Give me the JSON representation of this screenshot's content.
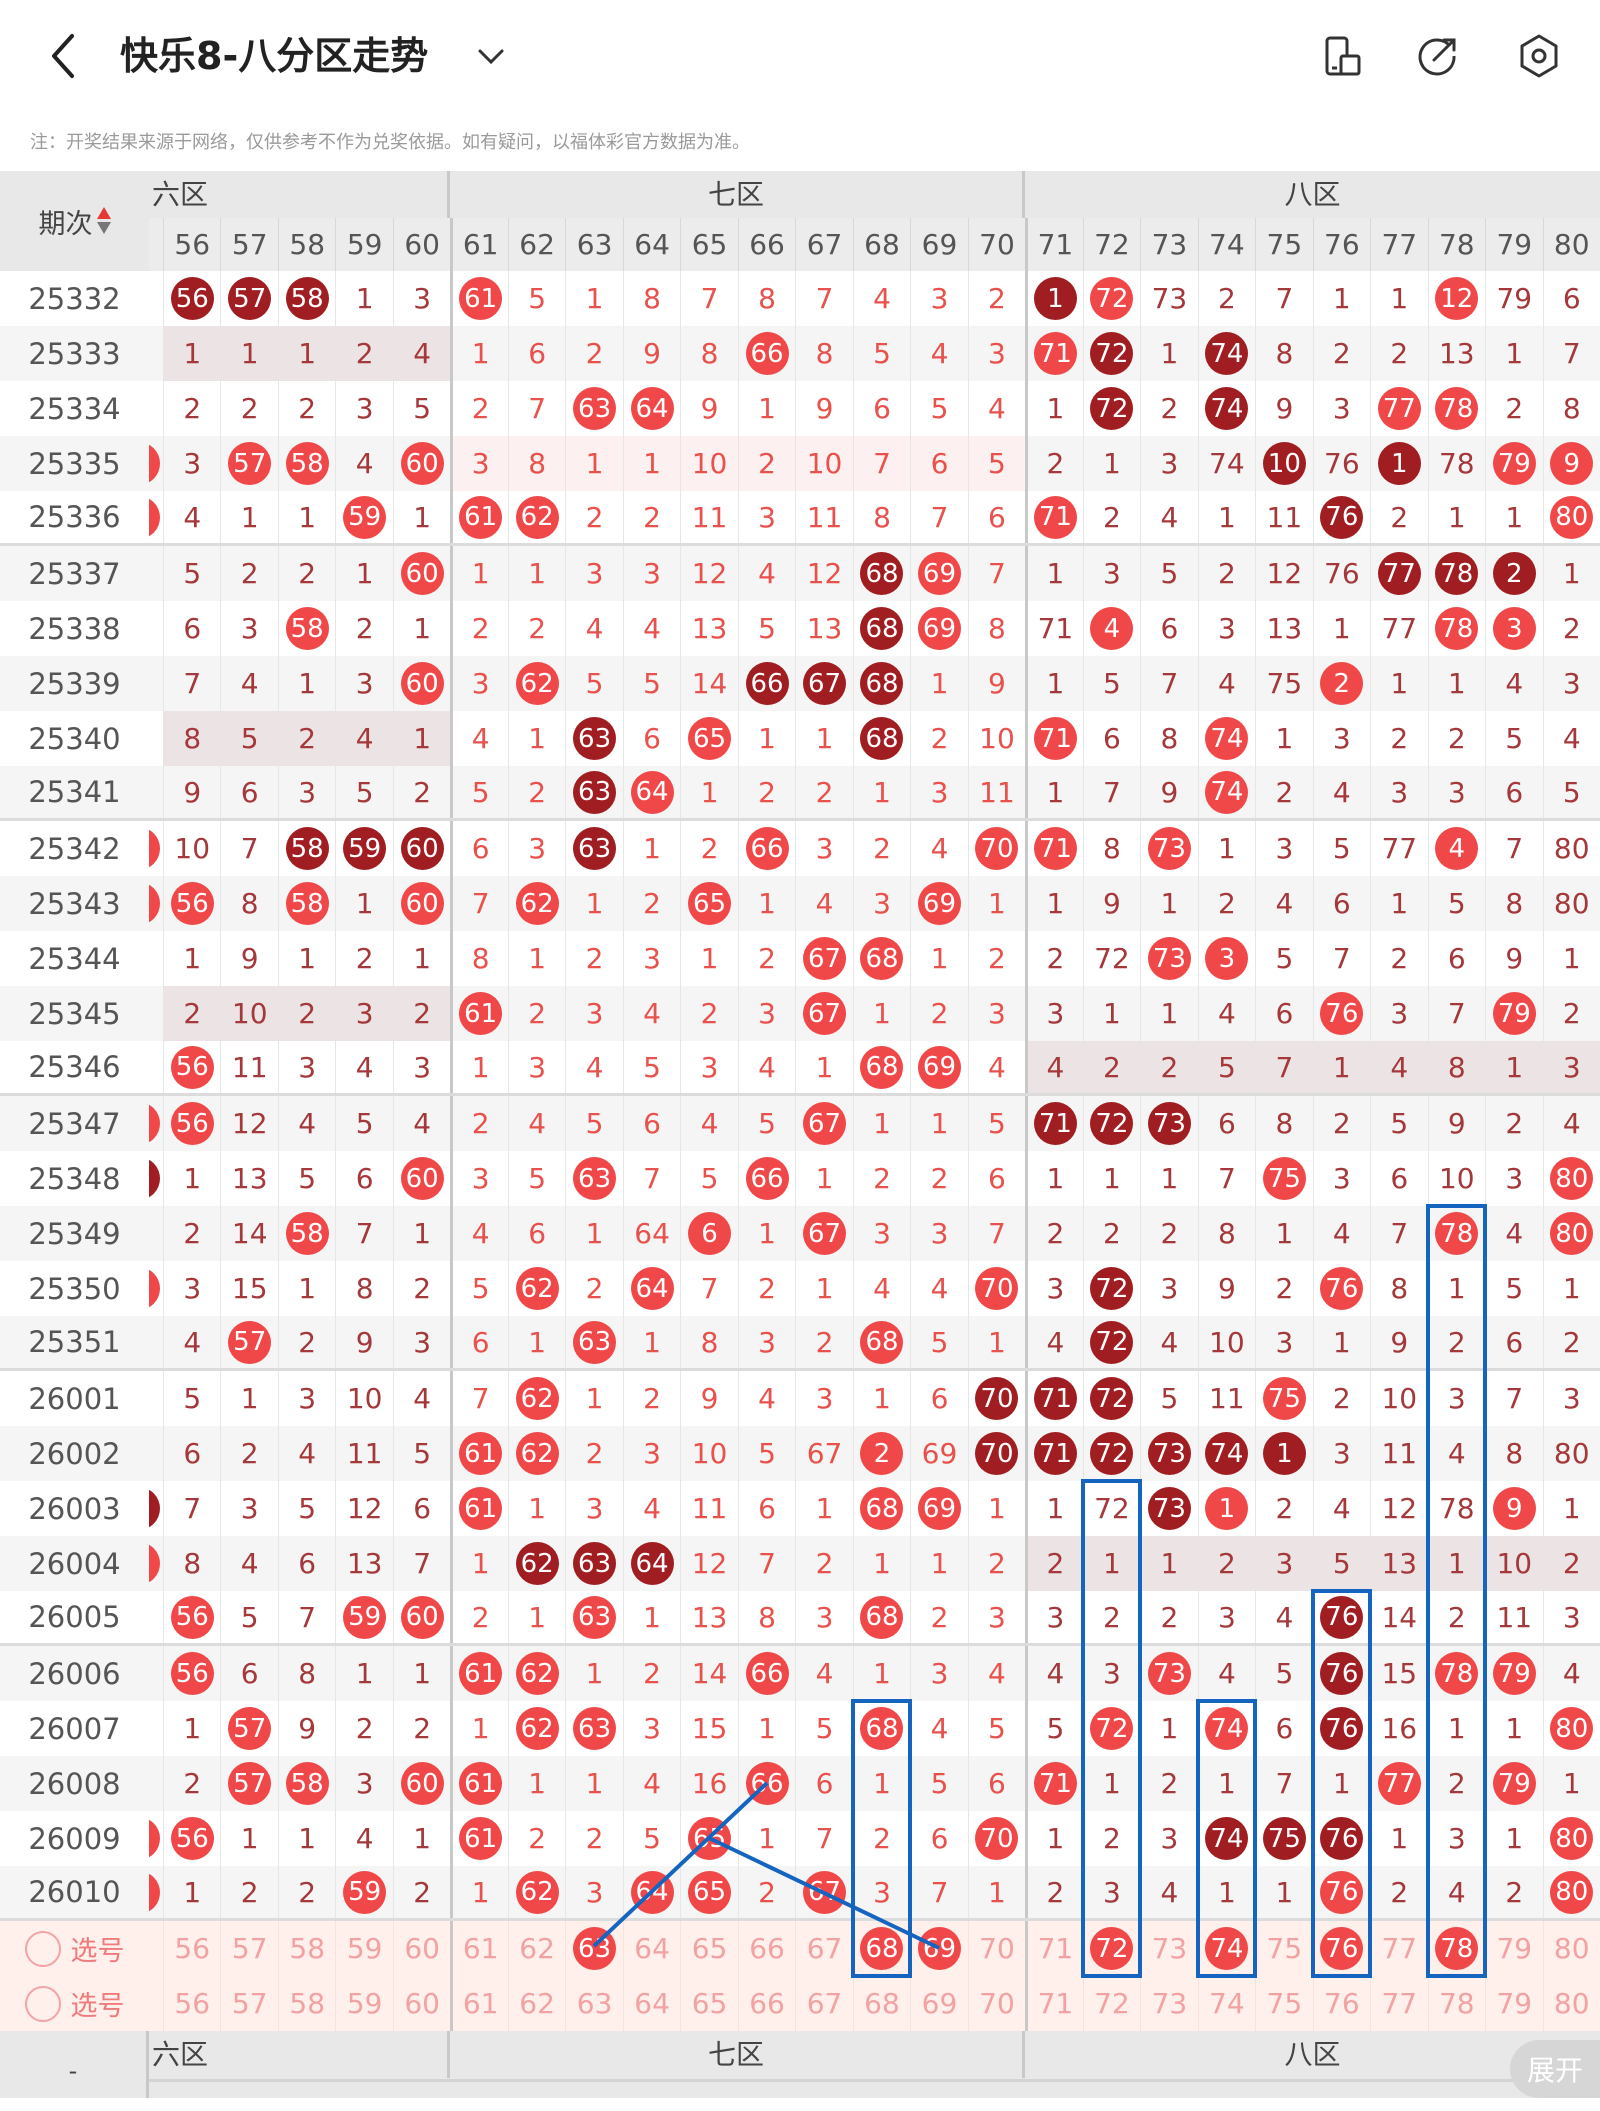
{
  "header": {
    "title": "快乐8-八分区走势",
    "note": "注：开奖结果来源于网络，仅供参考不作为兑奖依据。如有疑问，以福体彩官方数据为准。",
    "icons": [
      "back-icon",
      "chevron-down-icon",
      "rotate-screen-icon",
      "share-icon",
      "settings-icon"
    ]
  },
  "table": {
    "period_header": "期次",
    "zones": [
      "六区",
      "七区",
      "八区"
    ],
    "columns": [
      "56",
      "57",
      "58",
      "59",
      "60",
      "61",
      "62",
      "63",
      "64",
      "65",
      "66",
      "67",
      "68",
      "69",
      "70",
      "71",
      "72",
      "73",
      "74",
      "75",
      "76",
      "77",
      "78",
      "79",
      "80"
    ],
    "colors": {
      "hit": "#f04848",
      "repeat_hit": "#a01e22",
      "zone_even_text": "#a4383a",
      "zone_odd_text": "#e8514c"
    }
  },
  "rows": [
    {
      "period": "25332",
      "c55": null,
      "band": null,
      "hits": "ddd..r.........dr.....r.",
      "values": [
        56,
        57,
        58,
        1,
        3,
        61,
        5,
        1,
        8,
        7,
        8,
        7,
        4,
        3,
        2,
        1,
        72,
        73,
        2,
        7,
        1,
        1,
        12,
        79,
        6
      ]
    },
    {
      "period": "25333",
      "c55": null,
      "band": [
        56,
        60,
        "gray"
      ],
      "hits": "..........r....rd.d......",
      "values": [
        1,
        1,
        1,
        2,
        4,
        1,
        6,
        2,
        9,
        8,
        66,
        8,
        5,
        4,
        3,
        71,
        72,
        1,
        74,
        8,
        2,
        2,
        13,
        1,
        7
      ]
    },
    {
      "period": "25334",
      "c55": null,
      "band": null,
      "hits": ".......rr.......d.d..rr..",
      "values": [
        2,
        2,
        2,
        3,
        5,
        2,
        7,
        63,
        64,
        9,
        1,
        9,
        6,
        5,
        4,
        1,
        72,
        2,
        74,
        9,
        3,
        77,
        78,
        2,
        8
      ]
    },
    {
      "period": "25335",
      "c55": "r",
      "band": [
        61,
        70,
        "pink"
      ],
      "hits": ".rr.r..............d.d.rr.",
      "values": [
        3,
        57,
        58,
        4,
        60,
        3,
        8,
        1,
        1,
        10,
        2,
        10,
        7,
        6,
        5,
        2,
        1,
        3,
        74,
        10,
        76,
        1,
        78,
        79,
        9
      ]
    },
    {
      "period": "25336",
      "c55": "r",
      "band": null,
      "hits": "...r.rr........r....d...r",
      "values": [
        4,
        1,
        1,
        59,
        1,
        61,
        62,
        2,
        2,
        11,
        3,
        11,
        8,
        7,
        6,
        71,
        2,
        4,
        1,
        11,
        76,
        2,
        1,
        1,
        80
      ]
    },
    {
      "period": "25337",
      "c55": null,
      "band": null,
      "hits": "....r.......dr.......ddd..",
      "values": [
        5,
        2,
        2,
        1,
        60,
        1,
        1,
        3,
        3,
        12,
        4,
        12,
        68,
        69,
        7,
        1,
        3,
        5,
        2,
        12,
        76,
        77,
        78,
        2,
        1
      ]
    },
    {
      "period": "25338",
      "c55": null,
      "band": null,
      "hits": "..r.........dr..r.....rr..",
      "values": [
        6,
        3,
        58,
        2,
        1,
        2,
        2,
        4,
        4,
        13,
        5,
        13,
        68,
        69,
        8,
        71,
        4,
        6,
        3,
        13,
        1,
        77,
        78,
        3,
        2
      ]
    },
    {
      "period": "25339",
      "c55": null,
      "band": null,
      "hits": "....r.r...ddd.......r.....",
      "values": [
        7,
        4,
        1,
        3,
        60,
        3,
        62,
        5,
        5,
        14,
        66,
        67,
        68,
        1,
        9,
        1,
        5,
        7,
        4,
        75,
        2,
        1,
        1,
        4,
        3
      ]
    },
    {
      "period": "25340",
      "c55": null,
      "band": [
        56,
        60,
        "gray"
      ],
      "hits": ".......d.r..d..r..r......",
      "values": [
        8,
        5,
        2,
        4,
        1,
        4,
        1,
        63,
        6,
        65,
        1,
        1,
        68,
        2,
        10,
        71,
        6,
        8,
        74,
        1,
        3,
        2,
        2,
        5,
        4
      ]
    },
    {
      "period": "25341",
      "c55": null,
      "band": null,
      "hits": ".......dr.........r......",
      "values": [
        9,
        6,
        3,
        5,
        2,
        5,
        2,
        63,
        64,
        1,
        2,
        2,
        1,
        3,
        11,
        1,
        7,
        9,
        74,
        2,
        4,
        3,
        3,
        6,
        5
      ]
    },
    {
      "period": "25342",
      "c55": "r",
      "band": null,
      "hits": "..ddd..d..r...rr.r....r..r",
      "values": [
        10,
        7,
        58,
        59,
        60,
        6,
        3,
        63,
        1,
        2,
        66,
        3,
        2,
        4,
        70,
        71,
        8,
        73,
        1,
        3,
        5,
        77,
        4,
        7,
        80
      ]
    },
    {
      "period": "25343",
      "c55": "r",
      "band": null,
      "hits": "r.r.r.r..r...r...........r",
      "values": [
        56,
        8,
        58,
        1,
        60,
        7,
        62,
        1,
        2,
        65,
        1,
        4,
        3,
        69,
        1,
        1,
        9,
        1,
        2,
        4,
        6,
        1,
        5,
        8,
        80
      ]
    },
    {
      "period": "25344",
      "c55": null,
      "band": null,
      "hits": "...........rr....rr.......",
      "values": [
        1,
        9,
        1,
        2,
        1,
        8,
        1,
        2,
        3,
        1,
        2,
        67,
        68,
        1,
        2,
        2,
        72,
        73,
        3,
        5,
        7,
        2,
        6,
        9,
        1
      ]
    },
    {
      "period": "25345",
      "c55": null,
      "band": [
        56,
        60,
        "gray"
      ],
      "hits": ".....r.....r........r..r.",
      "values": [
        2,
        10,
        2,
        3,
        2,
        61,
        2,
        3,
        4,
        2,
        3,
        67,
        1,
        2,
        3,
        3,
        1,
        1,
        4,
        6,
        76,
        3,
        7,
        79,
        2
      ]
    },
    {
      "period": "25346",
      "c55": null,
      "band": [
        71,
        80,
        "gray"
      ],
      "hits": "r...........rr...........",
      "values": [
        56,
        11,
        3,
        4,
        3,
        1,
        3,
        4,
        5,
        3,
        4,
        1,
        68,
        69,
        4,
        4,
        2,
        2,
        5,
        7,
        1,
        4,
        8,
        1,
        3
      ]
    },
    {
      "period": "25347",
      "c55": "r",
      "band": null,
      "hits": "r..........r...ddd.......",
      "values": [
        56,
        12,
        4,
        5,
        4,
        2,
        4,
        5,
        6,
        4,
        5,
        67,
        1,
        1,
        5,
        71,
        72,
        73,
        6,
        8,
        2,
        5,
        9,
        2,
        4
      ]
    },
    {
      "period": "25348",
      "c55": "d",
      "band": null,
      "hits": "....r..r..r........r....r",
      "values": [
        1,
        13,
        5,
        6,
        60,
        3,
        5,
        63,
        7,
        5,
        66,
        1,
        2,
        2,
        6,
        1,
        1,
        1,
        7,
        75,
        3,
        6,
        10,
        3,
        80
      ]
    },
    {
      "period": "25349",
      "c55": null,
      "band": null,
      "hits": "..r......r.r..........r.r",
      "values": [
        2,
        14,
        58,
        7,
        1,
        4,
        6,
        1,
        64,
        6,
        1,
        67,
        3,
        3,
        7,
        2,
        2,
        2,
        8,
        1,
        4,
        7,
        78,
        4,
        80
      ]
    },
    {
      "period": "25350",
      "c55": "r",
      "band": null,
      "hits": "......r.r.....r.d...r....",
      "values": [
        3,
        15,
        1,
        8,
        2,
        5,
        62,
        2,
        64,
        7,
        2,
        1,
        4,
        4,
        70,
        3,
        72,
        3,
        9,
        2,
        76,
        8,
        1,
        5,
        1
      ]
    },
    {
      "period": "25351",
      "c55": null,
      "band": null,
      "hits": ".r.....r....r...d........",
      "values": [
        4,
        57,
        2,
        9,
        3,
        6,
        1,
        63,
        1,
        8,
        3,
        2,
        68,
        5,
        1,
        4,
        72,
        4,
        10,
        3,
        1,
        9,
        2,
        6,
        2
      ]
    },
    {
      "period": "26001",
      "c55": null,
      "band": null,
      "hits": "......r.......ddd..r.....",
      "values": [
        5,
        1,
        3,
        10,
        4,
        7,
        62,
        1,
        2,
        9,
        4,
        3,
        1,
        6,
        70,
        71,
        72,
        5,
        11,
        75,
        2,
        10,
        3,
        7,
        3
      ]
    },
    {
      "period": "26002",
      "c55": null,
      "band": null,
      "hits": ".....rr.....r.dddddd.....r",
      "values": [
        6,
        2,
        4,
        11,
        5,
        61,
        62,
        2,
        3,
        10,
        5,
        67,
        2,
        69,
        70,
        71,
        72,
        73,
        74,
        1,
        3,
        11,
        4,
        8,
        80
      ]
    },
    {
      "period": "26003",
      "c55": "d",
      "band": null,
      "hits": ".....r......rr...dr....r..",
      "values": [
        7,
        3,
        5,
        12,
        6,
        61,
        1,
        3,
        4,
        11,
        6,
        1,
        68,
        69,
        1,
        1,
        72,
        73,
        1,
        2,
        4,
        12,
        78,
        9,
        1
      ]
    },
    {
      "period": "26004",
      "c55": "r",
      "band": [
        71,
        80,
        "gray"
      ],
      "hits": "......ddd................",
      "values": [
        8,
        4,
        6,
        13,
        7,
        1,
        62,
        63,
        64,
        12,
        7,
        2,
        1,
        1,
        2,
        2,
        1,
        1,
        2,
        3,
        5,
        13,
        1,
        10,
        2
      ]
    },
    {
      "period": "26005",
      "c55": null,
      "band": null,
      "hits": "r..rr..r....r.......d....",
      "values": [
        56,
        5,
        7,
        59,
        60,
        2,
        1,
        63,
        1,
        13,
        8,
        3,
        68,
        2,
        3,
        3,
        2,
        2,
        3,
        4,
        76,
        14,
        2,
        11,
        3
      ]
    },
    {
      "period": "26006",
      "c55": null,
      "band": null,
      "hits": "r....rr...r......r..d.rr.",
      "values": [
        56,
        6,
        8,
        1,
        1,
        61,
        62,
        1,
        2,
        14,
        66,
        4,
        1,
        3,
        4,
        4,
        3,
        73,
        4,
        5,
        76,
        15,
        78,
        79,
        4
      ]
    },
    {
      "period": "26007",
      "c55": null,
      "band": null,
      "hits": ".r....rr....r...r.r.d...r",
      "values": [
        1,
        57,
        9,
        2,
        2,
        1,
        62,
        63,
        3,
        15,
        1,
        5,
        68,
        4,
        5,
        5,
        72,
        1,
        74,
        6,
        76,
        16,
        1,
        1,
        80
      ]
    },
    {
      "period": "26008",
      "c55": null,
      "band": null,
      "hits": ".rr.rr....r....r.....r.r.",
      "values": [
        2,
        57,
        58,
        3,
        60,
        61,
        1,
        1,
        4,
        16,
        66,
        6,
        1,
        5,
        6,
        71,
        1,
        2,
        1,
        7,
        1,
        77,
        2,
        79,
        1
      ]
    },
    {
      "period": "26009",
      "c55": "r",
      "band": null,
      "hits": "r....r...r....r...ddd...r",
      "values": [
        56,
        1,
        1,
        4,
        1,
        61,
        2,
        2,
        5,
        65,
        1,
        7,
        2,
        6,
        70,
        1,
        2,
        3,
        74,
        75,
        76,
        1,
        3,
        1,
        80
      ]
    },
    {
      "period": "26010",
      "c55": "r",
      "band": null,
      "hits": "...r..r.rr.r........r...r",
      "values": [
        1,
        2,
        2,
        59,
        2,
        1,
        62,
        3,
        64,
        65,
        2,
        67,
        3,
        7,
        1,
        2,
        3,
        4,
        1,
        1,
        76,
        2,
        4,
        2,
        80
      ]
    }
  ],
  "picker": {
    "label": "选号",
    "rows": [
      {
        "selected": [
          "63",
          "68",
          "69",
          "72",
          "74",
          "76",
          "78"
        ]
      },
      {
        "selected": []
      }
    ]
  },
  "footer": {
    "left": "-",
    "expand_label": "展开"
  }
}
